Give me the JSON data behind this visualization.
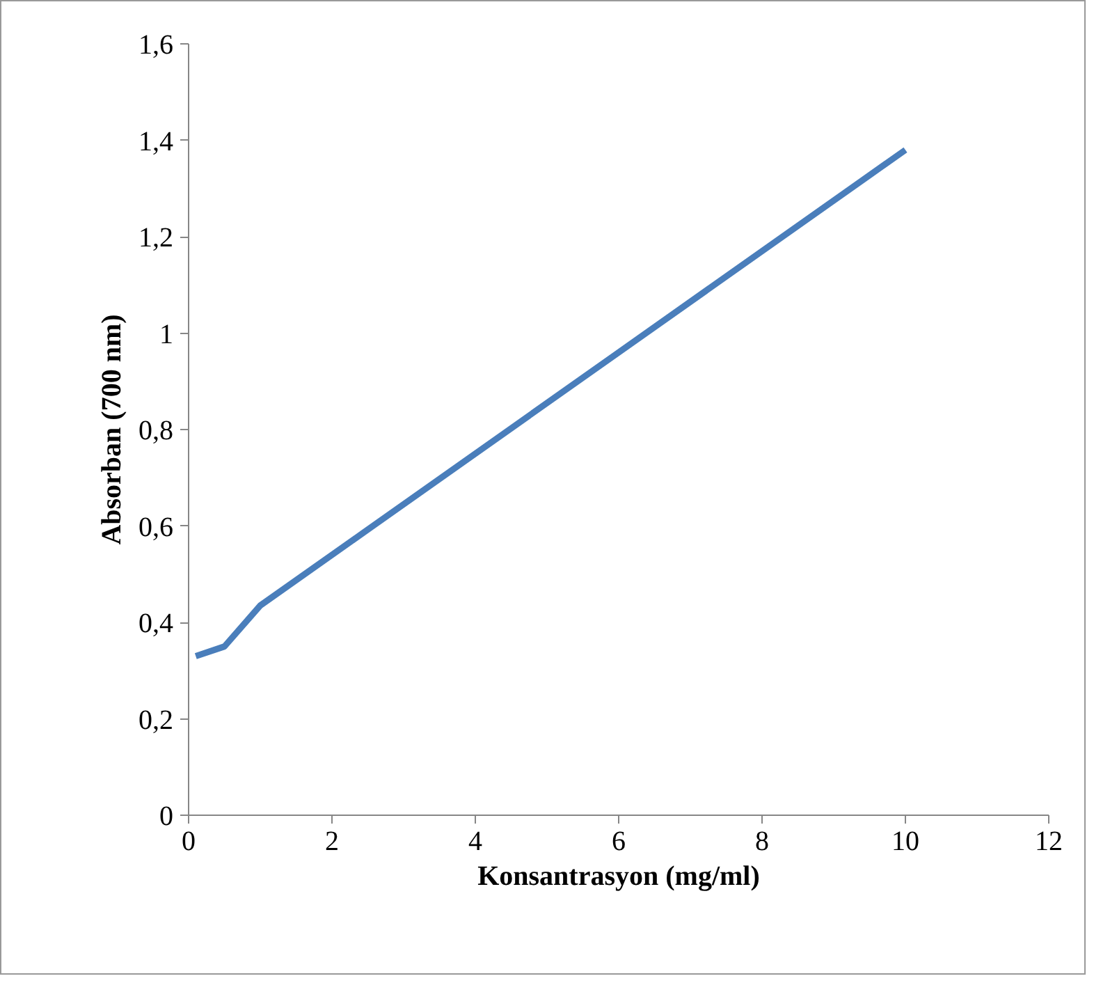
{
  "chart_data": {
    "type": "line",
    "xlabel": "Konsantrasyon (mg/ml)",
    "ylabel": "Absorban (700 nm)",
    "x": [
      0.1,
      0.5,
      1,
      10
    ],
    "series": [
      {
        "color": "#4a7ebb",
        "values": [
          0.33,
          0.35,
          0.435,
          1.38
        ]
      }
    ],
    "xlim": [
      0,
      12
    ],
    "xticks": [
      0,
      2,
      4,
      6,
      8,
      10,
      12
    ],
    "ylim": [
      0,
      1.6
    ],
    "yticks": [
      0,
      {
        "value": 0.2,
        "label": "0,2"
      },
      {
        "value": 0.4,
        "label": "0,4"
      },
      {
        "value": 0.6,
        "label": "0,6"
      },
      {
        "value": 0.8,
        "label": "0,8"
      },
      1,
      {
        "value": 1.2,
        "label": "1,2"
      },
      {
        "value": 1.4,
        "label": "1,4"
      },
      {
        "value": 1.6,
        "label": "1,6"
      }
    ],
    "grid": false,
    "marker": "none",
    "line_style": "solid"
  }
}
